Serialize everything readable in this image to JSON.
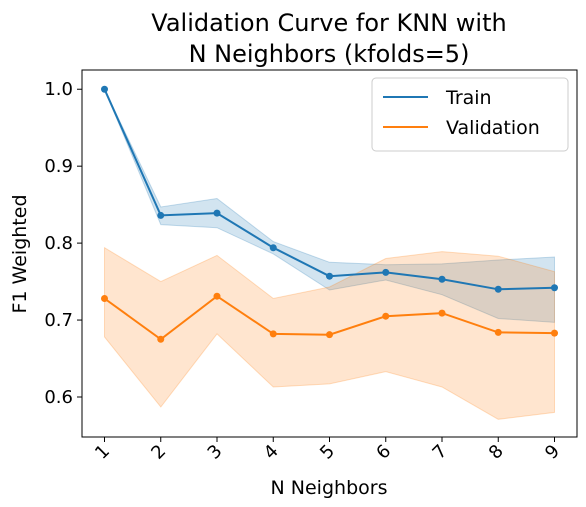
{
  "chart_data": {
    "type": "line",
    "title": [
      "Validation Curve for KNN with",
      "N Neighbors (kfolds=5)"
    ],
    "xlabel": "N Neighbors",
    "ylabel": "F1 Weighted",
    "x": [
      1,
      2,
      3,
      4,
      5,
      6,
      7,
      8,
      9
    ],
    "xlim": [
      0.6,
      9.4
    ],
    "ylim": [
      0.548,
      1.025
    ],
    "yticks": [
      0.6,
      0.7,
      0.8,
      0.9,
      1.0
    ],
    "yticklabels": [
      "0.6",
      "0.7",
      "0.8",
      "0.9",
      "1.0"
    ],
    "xticklabels": [
      "1",
      "2",
      "3",
      "4",
      "5",
      "6",
      "7",
      "8",
      "9"
    ],
    "legend": {
      "position": "top-right"
    },
    "grid": false,
    "series": [
      {
        "name": "Train",
        "color": "#1f77b4",
        "values": [
          1.0,
          0.836,
          0.839,
          0.794,
          0.757,
          0.762,
          0.753,
          0.74,
          0.742
        ],
        "lower": [
          1.0,
          0.824,
          0.82,
          0.786,
          0.739,
          0.752,
          0.733,
          0.702,
          0.697
        ],
        "upper": [
          1.0,
          0.847,
          0.858,
          0.802,
          0.775,
          0.772,
          0.773,
          0.778,
          0.782
        ]
      },
      {
        "name": "Validation",
        "color": "#ff7f0e",
        "values": [
          0.728,
          0.675,
          0.731,
          0.682,
          0.681,
          0.705,
          0.709,
          0.684,
          0.683
        ],
        "lower": [
          0.678,
          0.587,
          0.682,
          0.613,
          0.617,
          0.633,
          0.613,
          0.571,
          0.58
        ],
        "upper": [
          0.794,
          0.75,
          0.784,
          0.728,
          0.743,
          0.78,
          0.789,
          0.783,
          0.763
        ]
      }
    ]
  }
}
